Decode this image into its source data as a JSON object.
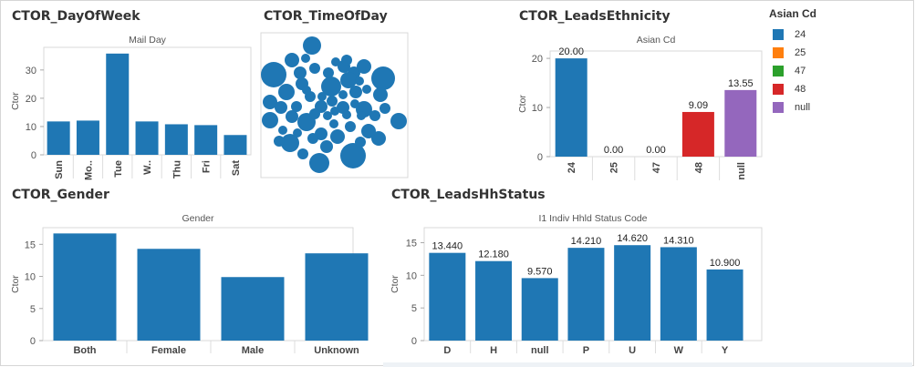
{
  "panels": {
    "dayofweek": {
      "title": "CTOR_DayOfWeek"
    },
    "timeofday": {
      "title": "CTOR_TimeOfDay"
    },
    "ethnicity": {
      "title": "CTOR_LeadsEthnicity"
    },
    "gender": {
      "title": "CTOR_Gender"
    },
    "hhstatus": {
      "title": "CTOR_LeadsHhStatus"
    }
  },
  "legend": {
    "title": "Asian Cd",
    "items": [
      {
        "label": "24",
        "color": "#1f77b4"
      },
      {
        "label": "25",
        "color": "#ff7f0e"
      },
      {
        "label": "47",
        "color": "#2ca02c"
      },
      {
        "label": "48",
        "color": "#d62728"
      },
      {
        "label": "null",
        "color": "#9467bd"
      }
    ]
  },
  "chart_data": [
    {
      "id": "dayofweek",
      "type": "bar",
      "title": "Mail Day",
      "ylabel": "Ctor",
      "categories": [
        "Sun",
        "Mo..",
        "Tue",
        "W..",
        "Thu",
        "Fri",
        "Sat"
      ],
      "values": [
        11.8,
        12.1,
        35.8,
        11.8,
        10.8,
        10.5,
        7.0
      ],
      "yticks": [
        0,
        10,
        20,
        30
      ],
      "ylim": [
        0,
        38
      ],
      "color": "#1f77b4"
    },
    {
      "id": "ethnicity",
      "type": "bar",
      "title": "Asian Cd",
      "ylabel": "Ctor",
      "categories": [
        "24",
        "25",
        "47",
        "48",
        "null"
      ],
      "values": [
        20.0,
        0.0,
        0.0,
        9.09,
        13.55
      ],
      "labels": [
        "20.00",
        "0.00",
        "0.00",
        "9.09",
        "13.55"
      ],
      "colors": [
        "#1f77b4",
        "#ff7f0e",
        "#2ca02c",
        "#d62728",
        "#9467bd"
      ],
      "yticks": [
        0,
        10,
        20
      ],
      "ylim": [
        0,
        21.5
      ]
    },
    {
      "id": "gender",
      "type": "bar",
      "title": "Gender",
      "ylabel": "Ctor",
      "categories": [
        "Both",
        "Female",
        "Male",
        "Unknown"
      ],
      "values": [
        16.7,
        14.3,
        9.9,
        13.6
      ],
      "yticks": [
        0,
        5,
        10,
        15
      ],
      "ylim": [
        0,
        17.6
      ],
      "color": "#1f77b4"
    },
    {
      "id": "hhstatus",
      "type": "bar",
      "title": "I1 Indiv Hhld Status Code",
      "ylabel": "Ctor",
      "categories": [
        "D",
        "H",
        "null",
        "P",
        "U",
        "W",
        "Y"
      ],
      "values": [
        13.44,
        12.18,
        9.57,
        14.21,
        14.62,
        14.31,
        10.9
      ],
      "labels": [
        "13.440",
        "12.180",
        "9.570",
        "14.210",
        "14.620",
        "14.310",
        "10.900"
      ],
      "yticks": [
        0,
        5,
        10,
        15
      ],
      "ylim": [
        0,
        17.3
      ],
      "color": "#1f77b4"
    },
    {
      "id": "timeofday",
      "type": "bubble",
      "series_count": 60,
      "color": "#1f77b4"
    }
  ]
}
